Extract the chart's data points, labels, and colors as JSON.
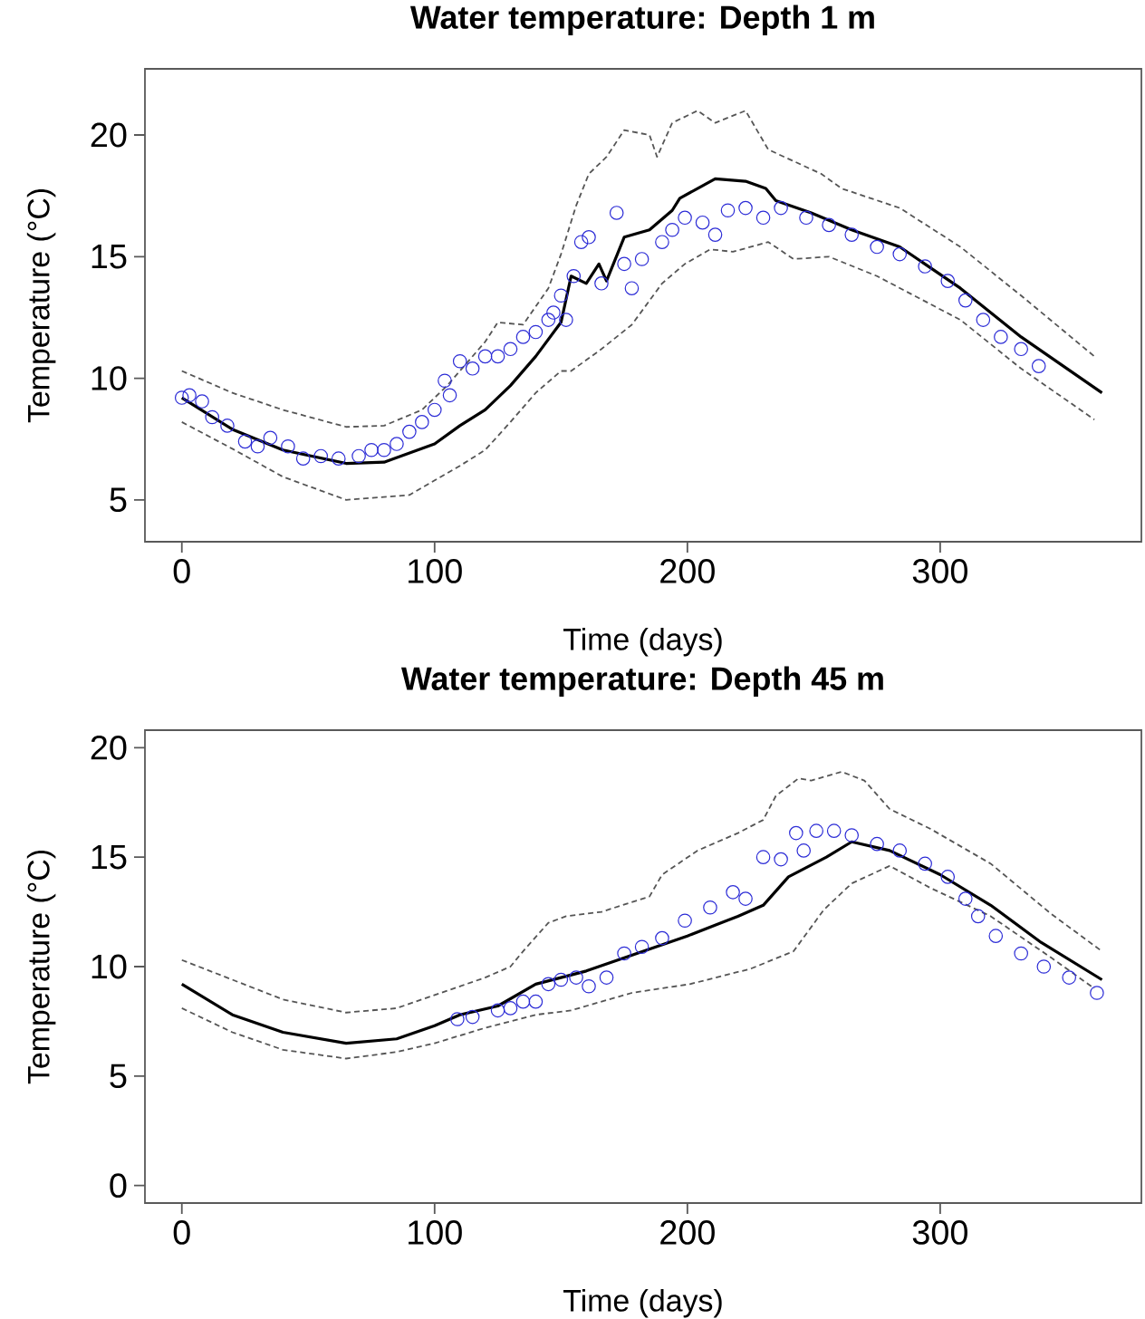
{
  "chart_data": [
    {
      "type": "line",
      "title": "Water temperature: Depth 1 m",
      "xlabel": "Time (days)",
      "ylabel": "Temperature (°C)",
      "xlim": [
        -14.6,
        379.6
      ],
      "ylim": [
        3.28,
        22.72
      ],
      "xticks": [
        0,
        100,
        200,
        300
      ],
      "yticks": [
        5,
        10,
        15,
        20
      ],
      "series": [
        {
          "color": "#000000",
          "line_style": "solid",
          "x": [
            0,
            20,
            40,
            65,
            80,
            100,
            110,
            120,
            130,
            140,
            150,
            154,
            160,
            165,
            168,
            175,
            185,
            194,
            197,
            204,
            211,
            223,
            231,
            235,
            249,
            265,
            284,
            308,
            332,
            364
          ],
          "values": [
            9.2,
            7.9,
            7.05,
            6.5,
            6.55,
            7.3,
            8.05,
            8.7,
            9.7,
            10.9,
            12.3,
            14.2,
            13.9,
            14.7,
            14.0,
            15.8,
            16.1,
            16.9,
            17.4,
            17.8,
            18.2,
            18.1,
            17.8,
            17.3,
            16.8,
            16.1,
            15.4,
            13.7,
            11.7,
            9.4
          ]
        },
        {
          "color": "#555555",
          "line_style": "dashed",
          "x": [
            0,
            20,
            40,
            65,
            80,
            95,
            105,
            120,
            125,
            135,
            145,
            150,
            156,
            161,
            168,
            175,
            185,
            188,
            194,
            204,
            211,
            223,
            232,
            253,
            261,
            284,
            308,
            332,
            361
          ],
          "values": [
            10.3,
            9.4,
            8.7,
            8.0,
            8.05,
            8.7,
            9.7,
            11.5,
            12.3,
            12.2,
            13.7,
            15.1,
            17.1,
            18.4,
            19.1,
            20.2,
            20.0,
            19.1,
            20.5,
            21.0,
            20.5,
            21.0,
            19.4,
            18.4,
            17.8,
            17.0,
            15.4,
            13.4,
            10.9
          ]
        },
        {
          "color": "#555555",
          "line_style": "dashed",
          "x": [
            0,
            20,
            40,
            65,
            90,
            100,
            110,
            120,
            130,
            140,
            150,
            154,
            166,
            178,
            190,
            199,
            209,
            218,
            232,
            242,
            256,
            275,
            308,
            332,
            361
          ],
          "values": [
            8.2,
            7.1,
            5.95,
            5.0,
            5.2,
            5.8,
            6.4,
            7.05,
            8.2,
            9.4,
            10.3,
            10.3,
            11.2,
            12.2,
            13.9,
            14.7,
            15.3,
            15.2,
            15.6,
            14.9,
            15.0,
            14.2,
            12.4,
            10.4,
            8.3
          ]
        },
        {
          "type": "scatter",
          "color": "#2b2bd6",
          "marker": "circle",
          "x": [
            0,
            3,
            8,
            12,
            18,
            25,
            30,
            35,
            42,
            48,
            55,
            62,
            70,
            75,
            80,
            85,
            90,
            95,
            100,
            104,
            106,
            110,
            115,
            120,
            125,
            130,
            135,
            140,
            145,
            147,
            150,
            152,
            155,
            158,
            161,
            166,
            172,
            175,
            178,
            182,
            190,
            194,
            199,
            206,
            211,
            216,
            223,
            230,
            237,
            247,
            256,
            265,
            275,
            284,
            294,
            303,
            310,
            317,
            324,
            332,
            339
          ],
          "values": [
            9.2,
            9.3,
            9.05,
            8.4,
            8.05,
            7.4,
            7.2,
            7.55,
            7.2,
            6.7,
            6.8,
            6.7,
            6.8,
            7.05,
            7.05,
            7.3,
            7.8,
            8.2,
            8.7,
            9.9,
            9.3,
            10.7,
            10.4,
            10.9,
            10.9,
            11.2,
            11.7,
            11.9,
            12.4,
            12.7,
            13.4,
            12.4,
            14.2,
            15.6,
            15.8,
            13.9,
            16.8,
            14.7,
            13.7,
            14.9,
            15.6,
            16.1,
            16.6,
            16.4,
            15.9,
            16.9,
            17.0,
            16.6,
            17.0,
            16.6,
            16.3,
            15.9,
            15.4,
            15.1,
            14.6,
            14.0,
            13.2,
            12.4,
            11.7,
            11.2,
            10.5
          ]
        }
      ]
    },
    {
      "type": "line",
      "title": "Water temperature: Depth 45 m",
      "xlabel": "Time (days)",
      "ylabel": "Temperature (°C)",
      "xlim": [
        -14.6,
        379.6
      ],
      "ylim": [
        -0.8,
        20.8
      ],
      "xticks": [
        0,
        100,
        200,
        300
      ],
      "yticks": [
        0,
        5,
        10,
        15,
        20
      ],
      "series": [
        {
          "color": "#000000",
          "line_style": "solid",
          "x": [
            0,
            20,
            40,
            65,
            85,
            100,
            110,
            125,
            140,
            160,
            180,
            200,
            220,
            230,
            240,
            255,
            265,
            280,
            300,
            320,
            340,
            364
          ],
          "values": [
            9.2,
            7.8,
            7.0,
            6.5,
            6.7,
            7.3,
            7.8,
            8.2,
            9.2,
            9.8,
            10.6,
            11.4,
            12.3,
            12.8,
            14.1,
            15.0,
            15.7,
            15.3,
            14.2,
            12.8,
            11.1,
            9.4
          ]
        },
        {
          "color": "#555555",
          "line_style": "dashed",
          "x": [
            0,
            20,
            40,
            65,
            85,
            100,
            120,
            130,
            135,
            145,
            152,
            166,
            185,
            190,
            204,
            220,
            230,
            235,
            244,
            249,
            261,
            270,
            280,
            296,
            320,
            344,
            364
          ],
          "values": [
            10.3,
            9.4,
            8.5,
            7.9,
            8.1,
            8.7,
            9.5,
            10.0,
            10.7,
            12.0,
            12.3,
            12.5,
            13.2,
            14.2,
            15.3,
            16.1,
            16.7,
            17.8,
            18.6,
            18.5,
            18.9,
            18.5,
            17.2,
            16.3,
            14.7,
            12.4,
            10.7
          ]
        },
        {
          "color": "#555555",
          "line_style": "dashed",
          "x": [
            0,
            20,
            40,
            65,
            85,
            100,
            120,
            140,
            154,
            178,
            201,
            225,
            242,
            254,
            265,
            280,
            296,
            320,
            344,
            361
          ],
          "values": [
            8.1,
            7.0,
            6.2,
            5.8,
            6.1,
            6.5,
            7.2,
            7.8,
            8.0,
            8.8,
            9.2,
            9.9,
            10.7,
            12.6,
            13.8,
            14.6,
            13.6,
            12.3,
            10.4,
            9.0
          ]
        },
        {
          "type": "scatter",
          "color": "#2b2bd6",
          "marker": "circle",
          "x": [
            109,
            115,
            125,
            130,
            135,
            140,
            145,
            150,
            156,
            161,
            168,
            175,
            182,
            190,
            199,
            209,
            218,
            223,
            230,
            237,
            243,
            246,
            251,
            258,
            265,
            275,
            284,
            294,
            303,
            310,
            315,
            322,
            332,
            341,
            351,
            362
          ],
          "values": [
            7.6,
            7.7,
            8.0,
            8.1,
            8.4,
            8.4,
            9.2,
            9.4,
            9.5,
            9.1,
            9.5,
            10.6,
            10.9,
            11.3,
            12.1,
            12.7,
            13.4,
            13.1,
            15.0,
            14.9,
            16.1,
            15.3,
            16.2,
            16.2,
            16.0,
            15.6,
            15.3,
            14.7,
            14.1,
            13.1,
            12.3,
            11.4,
            10.6,
            10.0,
            9.5,
            8.8
          ]
        }
      ]
    }
  ]
}
